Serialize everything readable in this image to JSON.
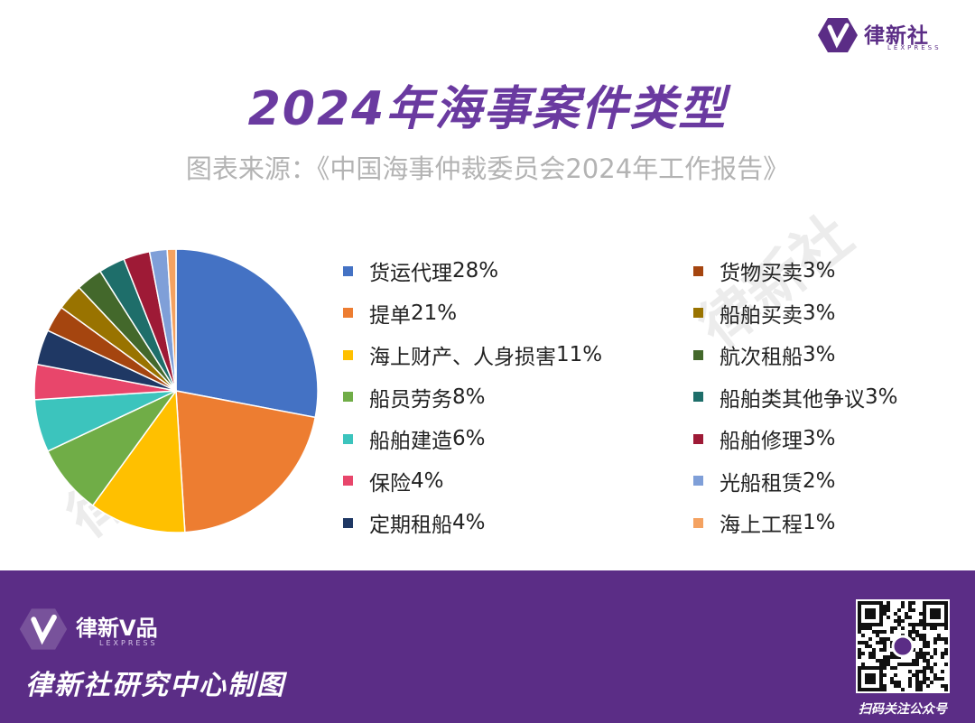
{
  "brand": {
    "name": "律新社",
    "name_en": "LEXPRESS"
  },
  "watermark": "律新社",
  "chart_data": {
    "type": "pie",
    "title": "2024年海事案件类型",
    "subtitle": "图表来源：《中国海事仲裁委员会2024年工作报告》",
    "legend_position": "right",
    "slices": [
      {
        "label": "货运代理",
        "value": 28,
        "color": "#4472c4"
      },
      {
        "label": "提单",
        "value": 21,
        "color": "#ed7d31"
      },
      {
        "label": "海上财产、人身损害",
        "value": 11,
        "color": "#ffc000"
      },
      {
        "label": "船员劳务",
        "value": 8,
        "color": "#70ad47"
      },
      {
        "label": "船舶建造",
        "value": 6,
        "color": "#3cc4bd"
      },
      {
        "label": "保险",
        "value": 4,
        "color": "#e8466b"
      },
      {
        "label": "定期租船",
        "value": 4,
        "color": "#1f3864"
      },
      {
        "label": "货物买卖",
        "value": 3,
        "color": "#a5450f"
      },
      {
        "label": "船舶买卖",
        "value": 3,
        "color": "#997300"
      },
      {
        "label": "航次租船",
        "value": 3,
        "color": "#43682b"
      },
      {
        "label": "船舶类其他争议",
        "value": 3,
        "color": "#1e6e6a"
      },
      {
        "label": "船舶修理",
        "value": 3,
        "color": "#9e1a36"
      },
      {
        "label": "光船租赁",
        "value": 2,
        "color": "#7f9fd8"
      },
      {
        "label": "海上工程",
        "value": 1,
        "color": "#f4a261"
      }
    ]
  },
  "footer": {
    "brand": "律新V品",
    "brand_en": "LEXPRESS",
    "credit": "律新社研究中心制图",
    "qr_label": "扫码关注公众号"
  }
}
